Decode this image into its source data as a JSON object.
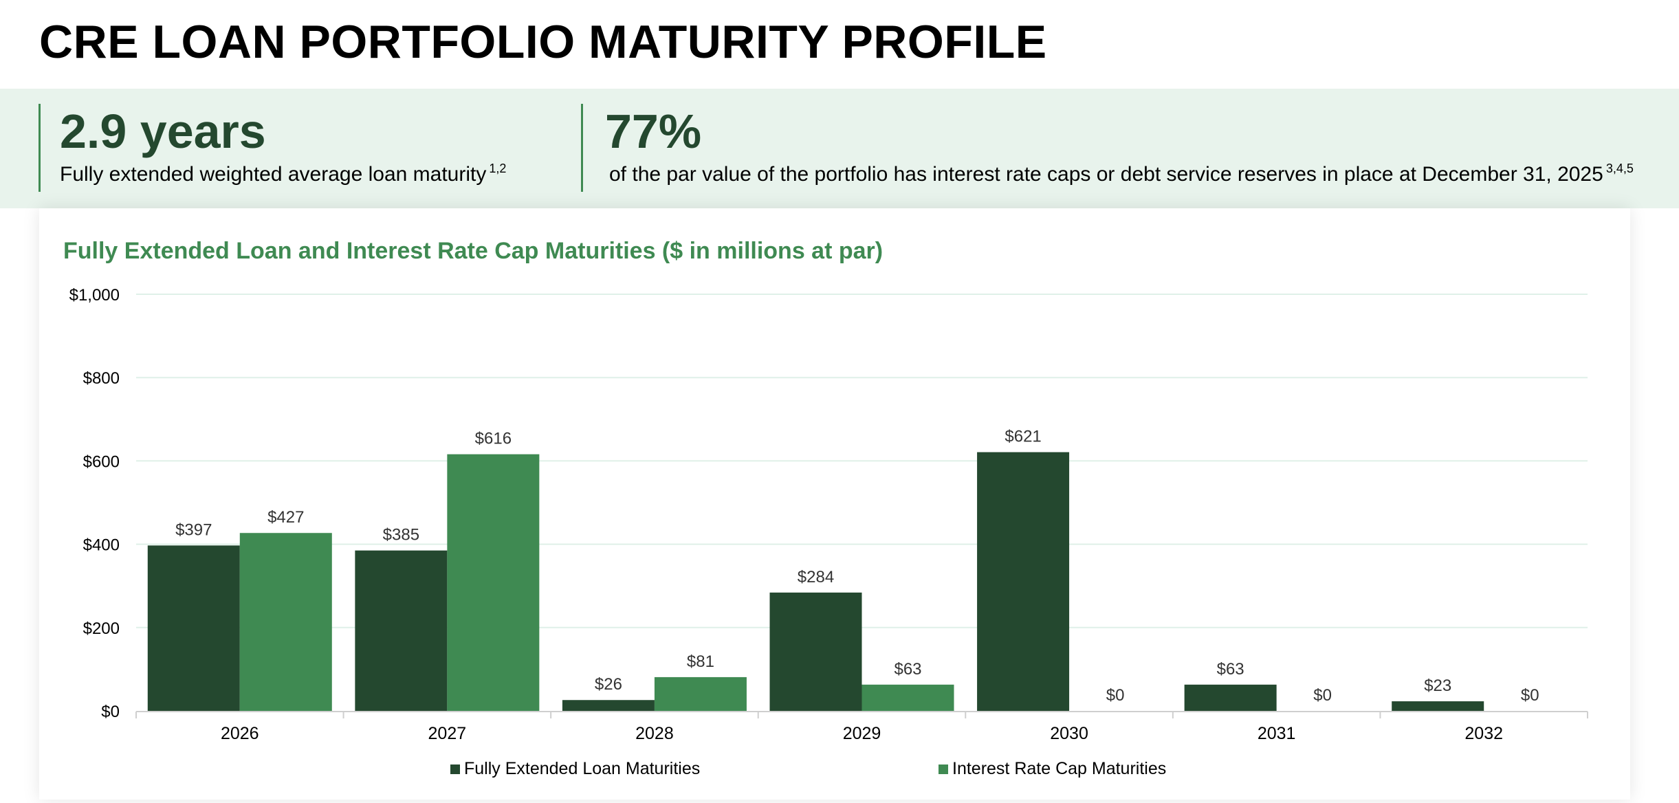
{
  "page": {
    "title": "CRE LOAN PORTFOLIO MATURITY PROFILE"
  },
  "kpis": [
    {
      "value": "2.9 years",
      "description": "Fully extended weighted average loan maturity",
      "footnote": "1,2"
    },
    {
      "value": "77%",
      "description": "of the par value of the portfolio has interest rate caps or debt service reserves in place at December 31, 2025",
      "footnote": "3,4,5"
    }
  ],
  "colors": {
    "dark_green": "#24482f",
    "medium_green": "#3f8a52",
    "band_background": "#e8f3ec",
    "gridline": "#dff0e8"
  },
  "chart_data": {
    "type": "bar",
    "title": "Fully Extended Loan and Interest Rate Cap Maturities ($ in millions at par)",
    "categories": [
      "2026",
      "2027",
      "2028",
      "2029",
      "2030",
      "2031",
      "2032"
    ],
    "series": [
      {
        "name": "Fully Extended Loan Maturities",
        "color": "#24482f",
        "values": [
          397,
          385,
          26,
          284,
          621,
          63,
          23
        ],
        "labels": [
          "$397",
          "$385",
          "$26",
          "$284",
          "$621",
          "$63",
          "$23"
        ]
      },
      {
        "name": "Interest Rate Cap Maturities",
        "color": "#3f8a52",
        "values": [
          427,
          616,
          81,
          63,
          0,
          0,
          0
        ],
        "labels": [
          "$427",
          "$616",
          "$81",
          "$63",
          "$0",
          "$0",
          "$0"
        ]
      }
    ],
    "yticks": [
      0,
      200,
      400,
      600,
      800,
      1000
    ],
    "ytick_labels": [
      "$0",
      "$200",
      "$400",
      "$600",
      "$800",
      "$1,000"
    ],
    "ylim": [
      0,
      1000
    ],
    "grid": true,
    "legend_position": "bottom"
  }
}
